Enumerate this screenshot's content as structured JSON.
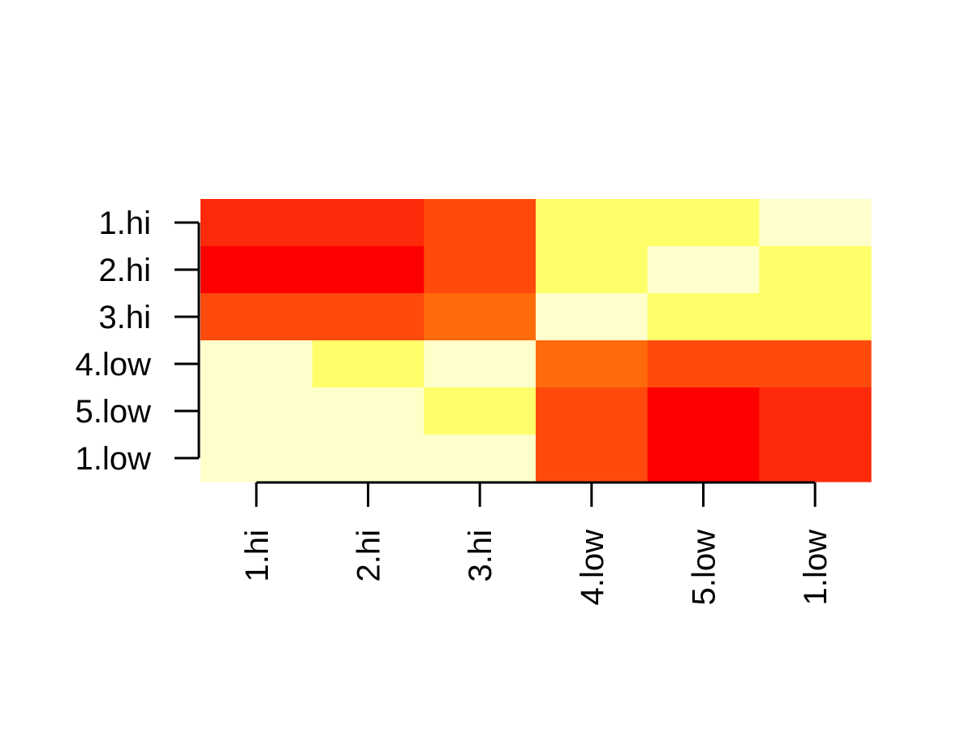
{
  "chart_data": {
    "type": "heatmap",
    "title": "",
    "xlabel": "",
    "ylabel": "",
    "x_labels": [
      "1.hi",
      "2.hi",
      "3.hi",
      "4.low",
      "5.low",
      "1.low"
    ],
    "y_labels": [
      "1.hi",
      "2.hi",
      "3.hi",
      "4.low",
      "5.low",
      "1.low"
    ],
    "palette": [
      "#FF0000",
      "#FF2A0A",
      "#FF4A0D",
      "#FF6A0A",
      "#FFFF6A",
      "#FFFFCC"
    ],
    "values": [
      [
        1,
        1,
        2,
        4,
        4,
        5
      ],
      [
        0,
        0,
        2,
        4,
        5,
        4
      ],
      [
        2,
        2,
        3,
        5,
        4,
        4
      ],
      [
        5,
        4,
        5,
        3,
        2,
        2
      ],
      [
        5,
        5,
        4,
        2,
        0,
        1
      ],
      [
        5,
        5,
        5,
        2,
        0,
        1
      ]
    ],
    "legend": "none",
    "grid": false
  }
}
